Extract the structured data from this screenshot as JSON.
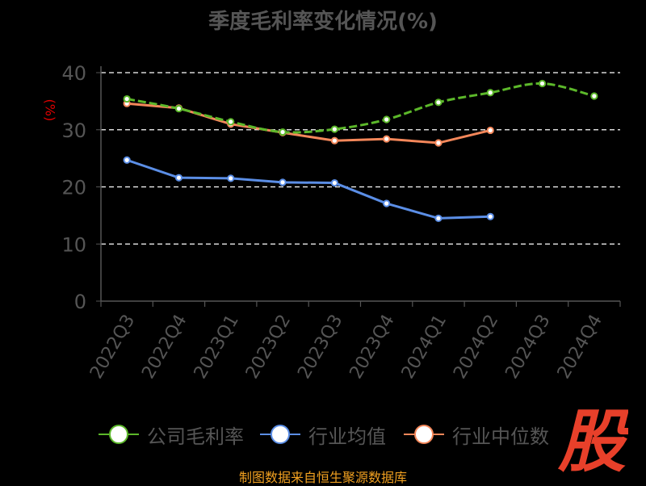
{
  "chart_data": {
    "type": "line",
    "title": "季度毛利率变化情况(%)",
    "ylabel": "(%)",
    "xlabel": "",
    "categories": [
      "2022Q3",
      "2022Q4",
      "2023Q1",
      "2023Q2",
      "2023Q3",
      "2023Q4",
      "2024Q1",
      "2024Q2",
      "2024Q3",
      "2024Q4"
    ],
    "ylim": [
      0,
      40
    ],
    "yticks": [
      0,
      10,
      20,
      30,
      40
    ],
    "grid": true,
    "legend_position": "bottom",
    "series": [
      {
        "name": "公司毛利率",
        "color": "#5cb82a",
        "values": [
          35.4,
          33.7,
          31.4,
          29.6,
          30.1,
          31.8,
          34.8,
          36.5,
          38.1,
          35.9
        ]
      },
      {
        "name": "行业均值",
        "color": "#5b8ee6",
        "values": [
          24.7,
          21.6,
          21.5,
          20.8,
          20.7,
          17.1,
          14.5,
          14.8,
          null,
          null
        ]
      },
      {
        "name": "行业中位数",
        "color": "#f4875a",
        "values": [
          34.6,
          33.8,
          31.0,
          29.5,
          28.1,
          28.4,
          27.7,
          29.9,
          null,
          null
        ]
      }
    ]
  },
  "footer": {
    "source": "制图数据来自恒生聚源数据库",
    "logo_text": "股",
    "logo_color": "#e8402a"
  }
}
